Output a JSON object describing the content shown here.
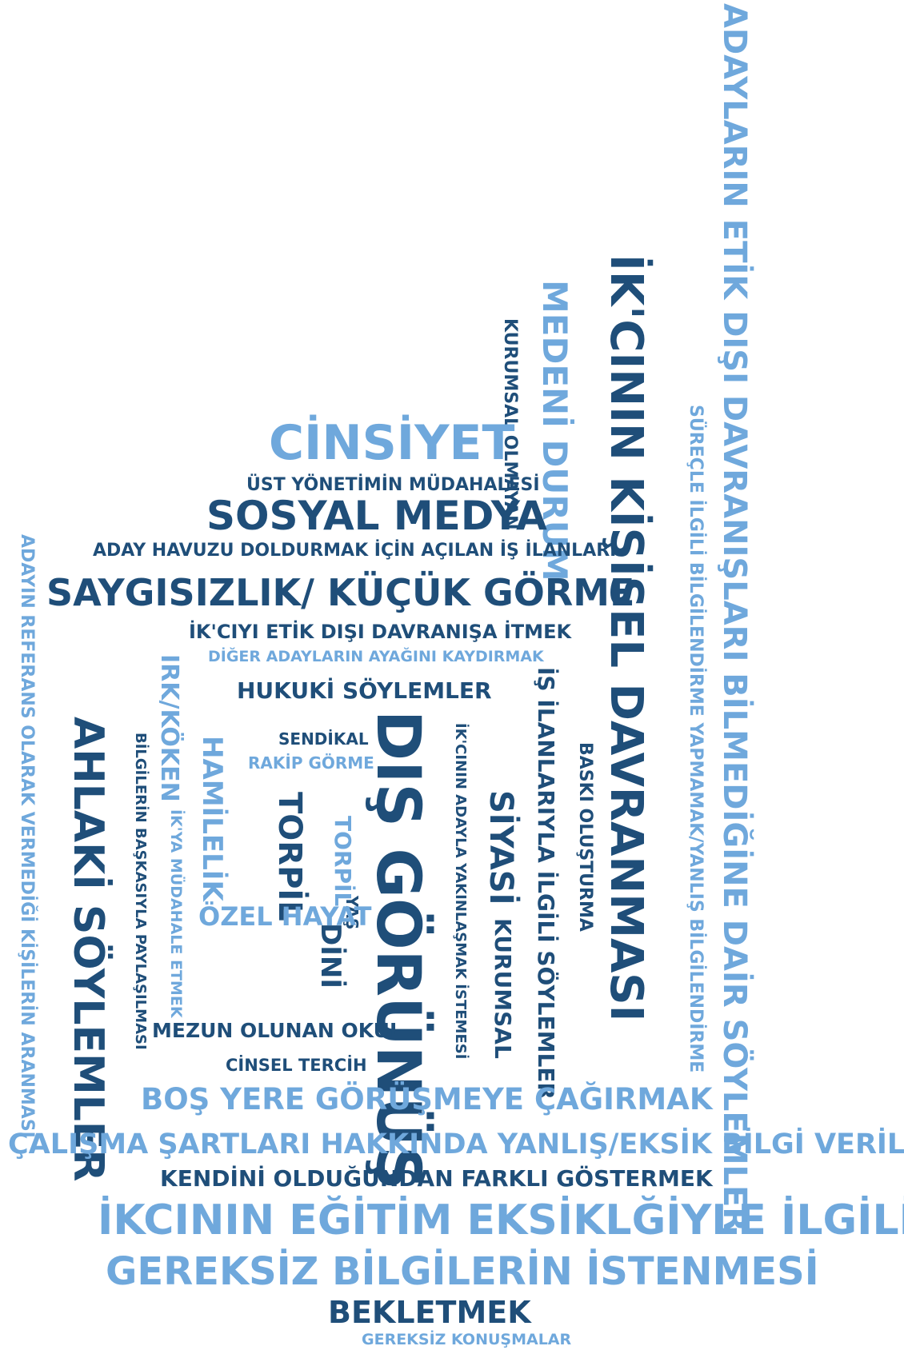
{
  "colors": {
    "dark": "#1f4e79",
    "light": "#6fa8dc",
    "background": "#ffffff"
  },
  "words": {
    "w01": "ADAYLARIN ETİK DIŞI DAVRANIŞLARI BİLMEDİĞİNE DAİR SÖYLEMLER",
    "w02": "İK'CININ KİŞİSEL DAVRANMASI",
    "w03": "MEDENİ DURUM",
    "w04": "KURUMSAL OLMAYAN",
    "w05": "SÜREÇLE İLGİLİ BİLGİLENDİRME YAPMAMAK/YANLIŞ BİLGİLENDİRME",
    "w06": "CİNSİYET",
    "w07": "ÜST YÖNETİMİN MÜDAHALESİ",
    "w08": "SOSYAL MEDYA",
    "w09": "ADAY HAVUZU DOLDURMAK İÇİN AÇILAN İŞ İLANLARI",
    "w10": "SAYGISIZLIK/ KÜÇÜK GÖRME",
    "w11": "İK'CIYI ETİK DIŞI DAVRANIŞA İTMEK",
    "w12": "DİĞER ADAYLARIN AYAĞINI KAYDIRMAK",
    "w13": "HUKUKİ SÖYLEMLER",
    "w14": "ADAYIN REFERANS OLARAK VERMEDİĞİ KİŞİLERİN ARANMASI",
    "w15": "AHLAKİ SÖYLEMLER",
    "w16": "IRK/KÖKEN",
    "w17": "BİLGİLERİN BAŞKASIYLA PAYLAŞILMASI",
    "w18": "HAMİLELİK",
    "w19": "İK'YA MÜDAHALE ETMEK",
    "w20": "SENDİKAL",
    "w21": "RAKİP GÖRME",
    "w22": "TORPİL",
    "w23": "TORPİL",
    "w24": "DIŞ GÖRÜNÜŞ",
    "w25": "YAŞ",
    "w26": "DİNİ",
    "w27": "ÖZEL HAYAT",
    "w28": "İK'CININ ADAYLA YAKINLAŞMAK İSTEMESİ",
    "w29": "SİYASİ",
    "w30": "KURUMSAL",
    "w31": "İŞ İLANLARIYLA İLGİLİ SÖYLEMLER",
    "w32": "BASKI OLUŞTURMA",
    "w33": "MEZUN OLUNAN OKUL",
    "w34": "CİNSEL TERCİH",
    "w35": "BOŞ YERE GÖRÜŞMEYE ÇAĞIRMAK",
    "w36": "ÇALIŞMA ŞARTLARI HAKKINDA YANLIŞ/EKSİK BİLGİ VERİLMESİ",
    "w37": "KENDİNİ OLDUĞUNDAN FARKLI GÖSTERMEK",
    "w38": "İKCININ EĞİTİM EKSİKLĞİYLE İLGİLİ",
    "w39": "GEREKSİZ BİLGİLERİN İSTENMESİ",
    "w40": "BEKLETMEK",
    "w41": "GEREKSİZ KONUŞMALAR"
  }
}
